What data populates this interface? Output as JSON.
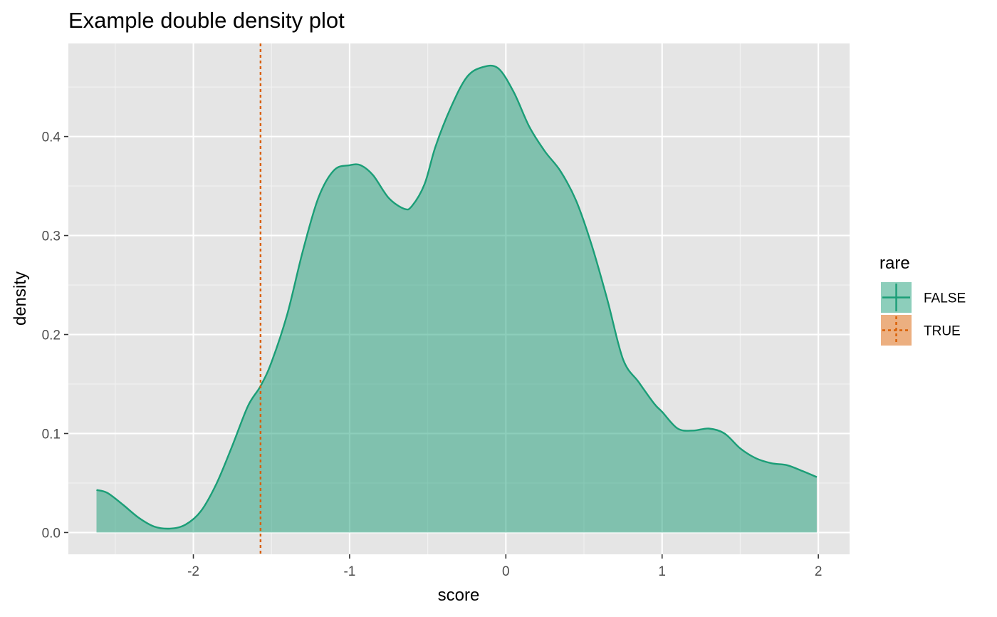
{
  "chart_data": {
    "type": "area",
    "title": "Example double density plot",
    "xlabel": "score",
    "ylabel": "density",
    "xlim": [
      -2.8,
      2.2
    ],
    "ylim": [
      -0.022,
      0.494
    ],
    "x_ticks": [
      {
        "value": -2,
        "label": "-2"
      },
      {
        "value": -1,
        "label": "-1"
      },
      {
        "value": 0,
        "label": "0"
      },
      {
        "value": 1,
        "label": "1"
      },
      {
        "value": 2,
        "label": "2"
      }
    ],
    "y_ticks": [
      {
        "value": 0.0,
        "label": "0.0"
      },
      {
        "value": 0.1,
        "label": "0.1"
      },
      {
        "value": 0.2,
        "label": "0.2"
      },
      {
        "value": 0.3,
        "label": "0.3"
      },
      {
        "value": 0.4,
        "label": "0.4"
      }
    ],
    "grid": true,
    "legend_position": "right",
    "legend": {
      "title": "rare",
      "entries": [
        {
          "label": "FALSE",
          "color": "#1b9e77",
          "linetype": "solid"
        },
        {
          "label": "TRUE",
          "color": "#d95f02",
          "linetype": "dotted"
        }
      ]
    },
    "series": [
      {
        "name": "FALSE",
        "color": "#1b9e77",
        "fill_opacity": 0.5,
        "x": [
          -2.62,
          -2.55,
          -2.45,
          -2.35,
          -2.25,
          -2.15,
          -2.05,
          -1.95,
          -1.85,
          -1.75,
          -1.65,
          -1.57,
          -1.5,
          -1.4,
          -1.3,
          -1.2,
          -1.1,
          -1.0,
          -0.93,
          -0.85,
          -0.75,
          -0.65,
          -0.6,
          -0.52,
          -0.45,
          -0.35,
          -0.25,
          -0.15,
          -0.05,
          0.05,
          0.15,
          0.25,
          0.35,
          0.45,
          0.55,
          0.65,
          0.75,
          0.85,
          0.95,
          1.0,
          1.1,
          1.2,
          1.3,
          1.4,
          1.5,
          1.6,
          1.7,
          1.8,
          1.9,
          1.99
        ],
        "y": [
          0.043,
          0.04,
          0.028,
          0.015,
          0.006,
          0.004,
          0.008,
          0.022,
          0.05,
          0.088,
          0.128,
          0.148,
          0.172,
          0.22,
          0.284,
          0.338,
          0.366,
          0.371,
          0.371,
          0.361,
          0.338,
          0.327,
          0.33,
          0.352,
          0.39,
          0.43,
          0.46,
          0.47,
          0.469,
          0.445,
          0.41,
          0.385,
          0.365,
          0.335,
          0.29,
          0.235,
          0.175,
          0.152,
          0.13,
          0.122,
          0.105,
          0.103,
          0.105,
          0.1,
          0.085,
          0.075,
          0.07,
          0.068,
          0.062,
          0.056
        ]
      },
      {
        "name": "TRUE",
        "color": "#d95f02",
        "type": "vline",
        "x": -1.57
      }
    ]
  }
}
